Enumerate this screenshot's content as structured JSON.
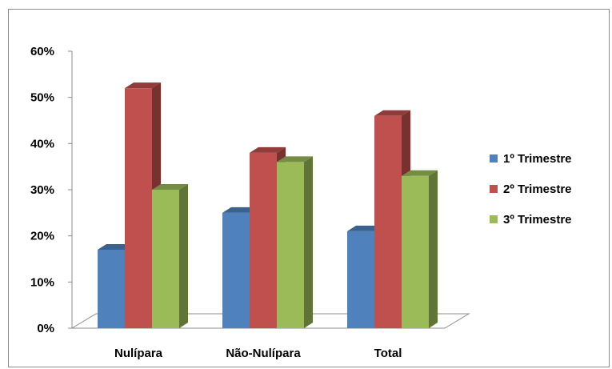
{
  "chart_data": {
    "type": "bar",
    "categories": [
      "Nulípara",
      "Não-Nulípara",
      "Total"
    ],
    "series": [
      {
        "name": "1º Trimestre",
        "color": "#4F81BD",
        "values": [
          17,
          25,
          21
        ]
      },
      {
        "name": "2º Trimestre",
        "color": "#C0504D",
        "values": [
          52,
          38,
          46
        ]
      },
      {
        "name": "3º Trimestre",
        "color": "#9BBB59",
        "values": [
          30,
          36,
          33
        ]
      }
    ],
    "y_ticks": [
      "0%",
      "10%",
      "20%",
      "30%",
      "40%",
      "50%",
      "60%"
    ],
    "ylim": [
      0,
      60
    ],
    "y_unit": "%",
    "grid": false,
    "legend_position": "right",
    "style": "3d-clustered-column"
  }
}
